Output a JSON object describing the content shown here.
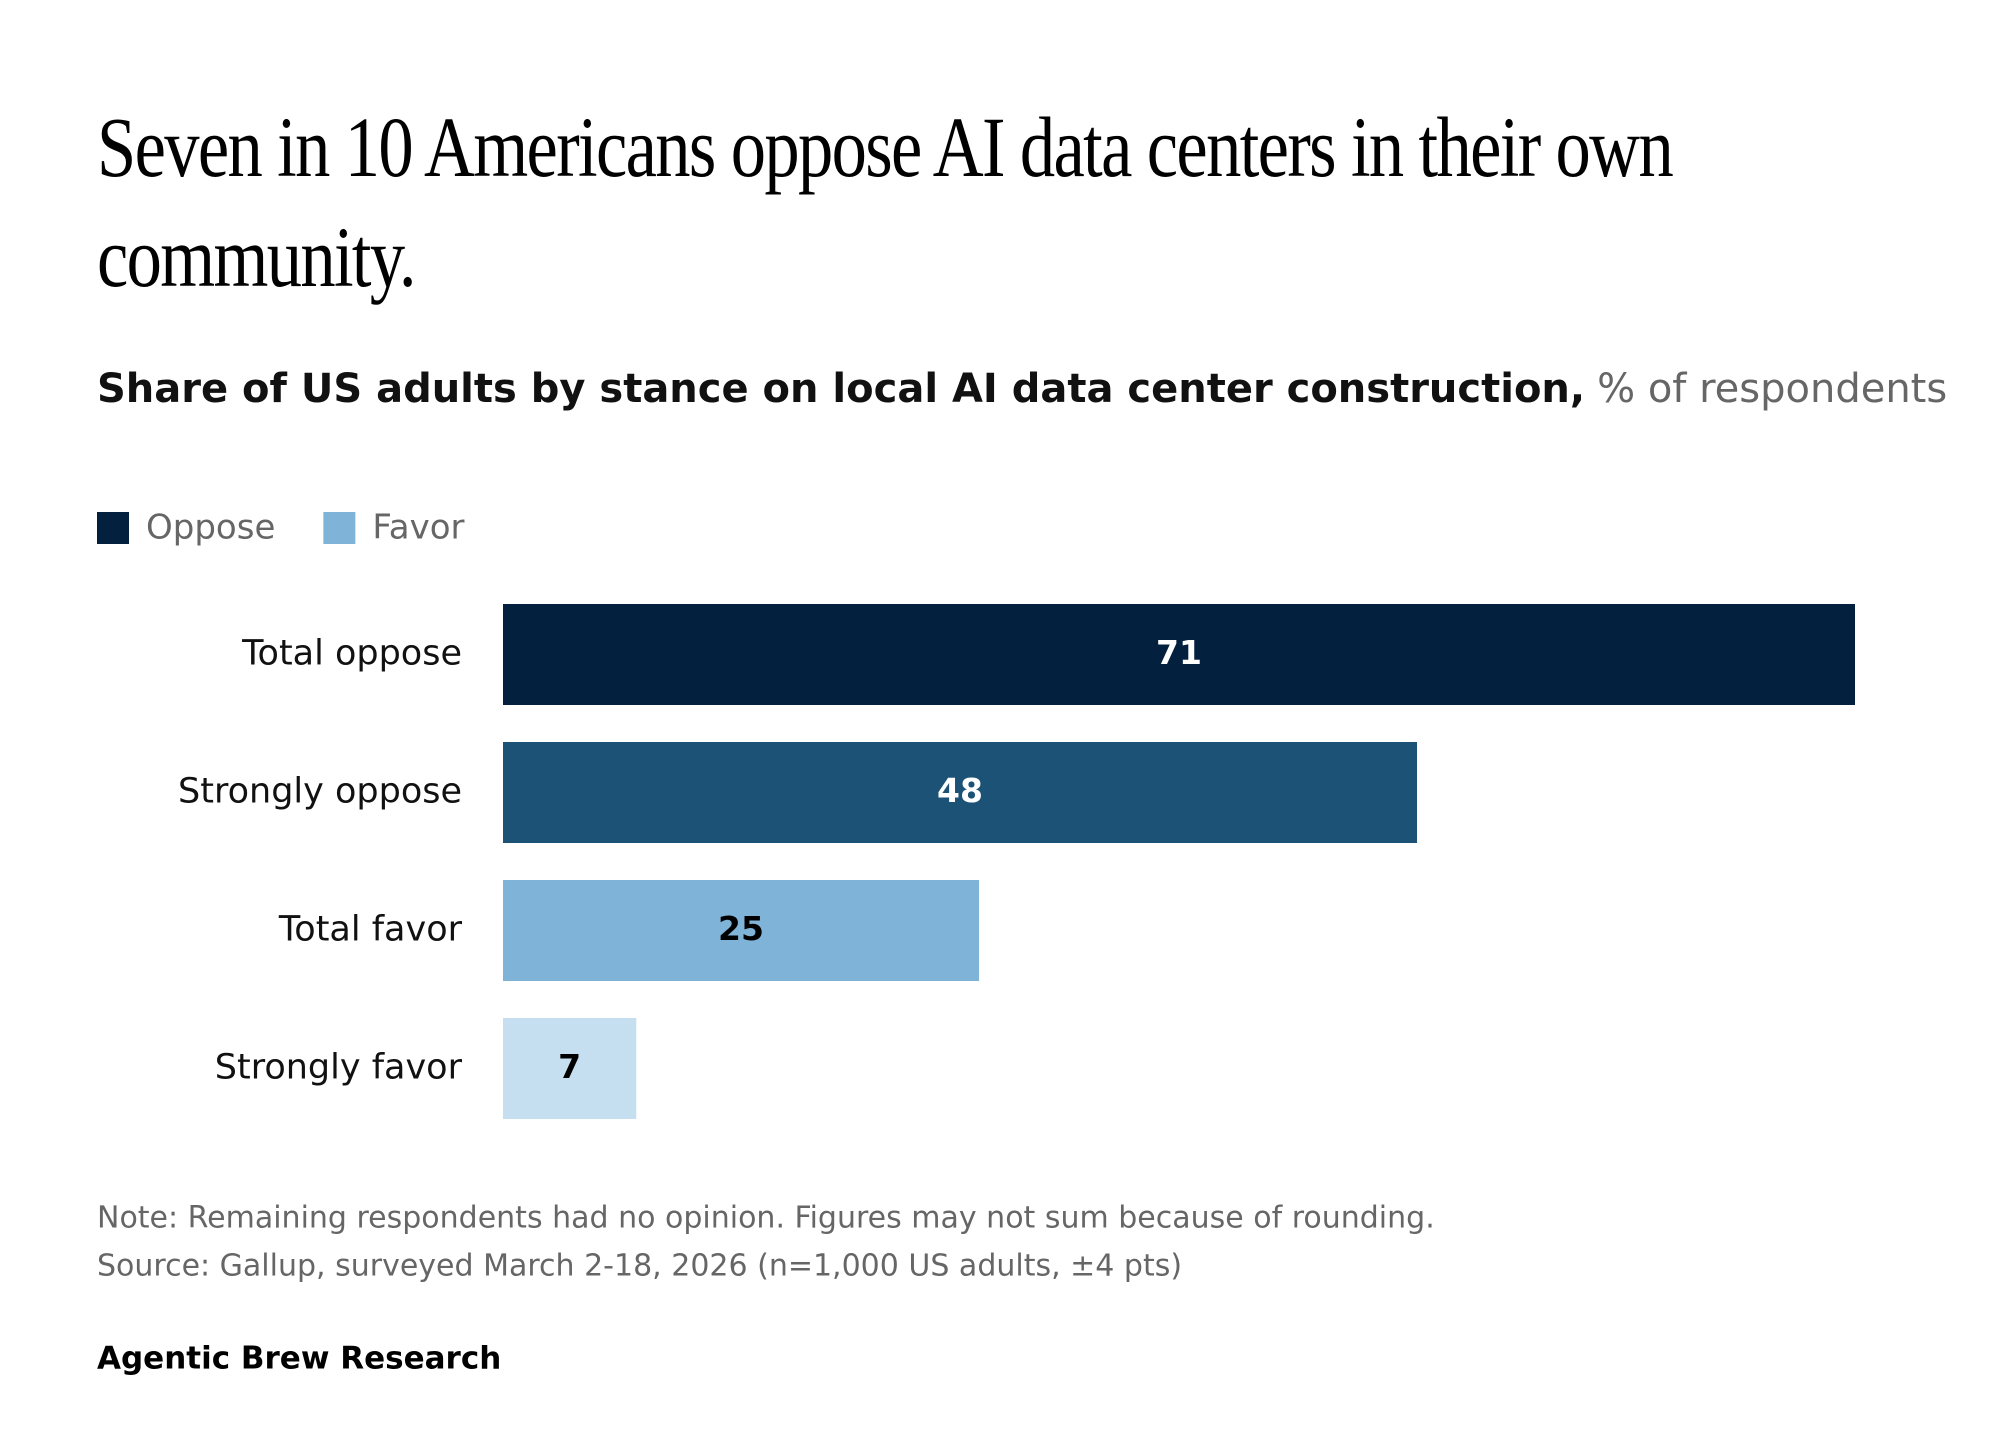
{
  "chart_data": {
    "type": "barh",
    "title": "Seven in 10 Americans oppose AI data centers in their own community.",
    "subtitle": "Share of US adults by stance on local AI data center construction,",
    "unit_label": "% of respondents",
    "legend": [
      {
        "name": "Oppose",
        "color": "#03203f"
      },
      {
        "name": "Favor",
        "color": "#7fb3d8"
      }
    ],
    "categories": [
      "Total oppose",
      "Strongly oppose",
      "Total favor",
      "Strongly favor"
    ],
    "values": [
      71,
      48,
      25,
      7
    ],
    "colors": [
      "#03203f",
      "#1b5276",
      "#7fb3d8",
      "#c6dff0"
    ],
    "xlim": [
      0,
      71
    ],
    "note": "Note: Remaining respondents had no opinion. Figures may not sum because of rounding.",
    "source": "Source: Gallup, surveyed March 2-18, 2026 (n=1,000 US adults, ±4 pts)",
    "brand": "Agentic Brew Research"
  }
}
